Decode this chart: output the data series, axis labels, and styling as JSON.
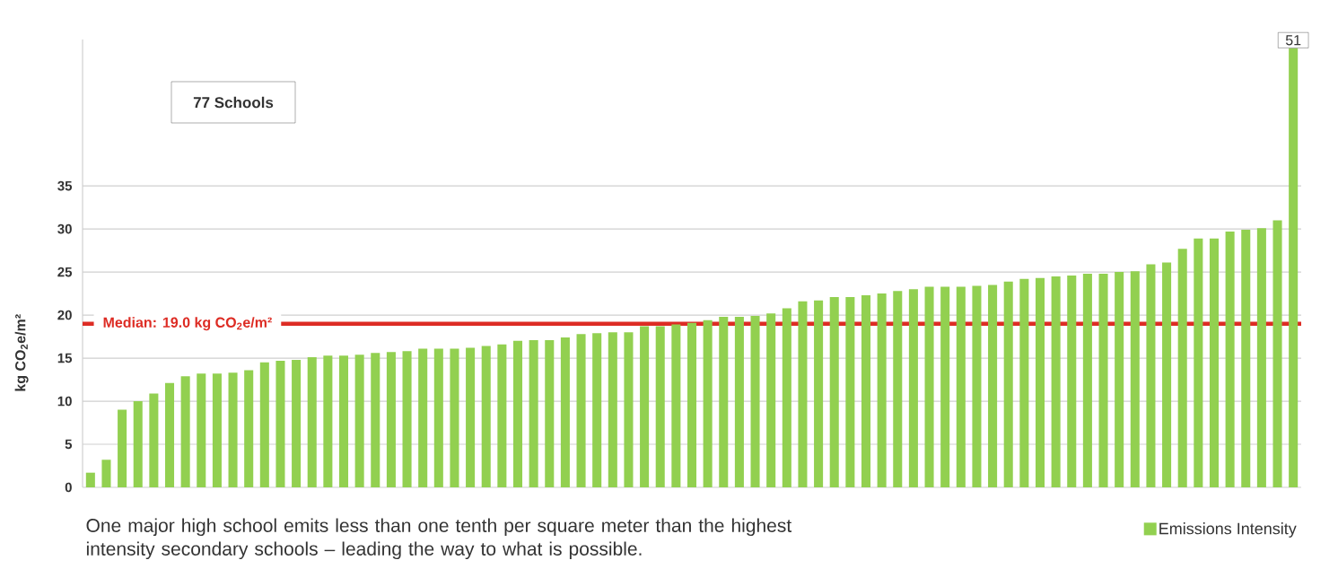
{
  "chart_data": {
    "type": "bar",
    "ylabel": "kg CO$_{2}$e/m²",
    "categories": [
      null,
      null,
      null,
      null,
      null,
      null,
      null,
      null,
      null,
      null,
      null,
      null,
      null,
      null,
      null,
      null,
      null,
      null,
      null,
      null,
      null,
      null,
      null,
      null,
      null,
      null,
      null,
      null,
      null,
      null,
      null,
      null,
      null,
      null,
      null,
      null,
      null,
      null,
      null,
      null,
      null,
      null,
      null,
      null,
      null,
      null,
      null,
      null,
      null,
      null,
      null,
      null,
      null,
      null,
      null,
      null,
      null,
      null,
      null,
      null,
      null,
      null,
      null,
      null,
      null,
      null,
      null,
      null,
      null,
      null,
      null,
      null,
      null,
      null,
      null,
      null,
      null
    ],
    "series": [
      {
        "name": "Emissions Intensity",
        "color": "#92d050",
        "values": [
          1.7,
          3.2,
          9.0,
          10.0,
          10.9,
          12.1,
          12.9,
          13.2,
          13.2,
          13.3,
          13.6,
          14.5,
          14.7,
          14.8,
          15.1,
          15.3,
          15.3,
          15.4,
          15.6,
          15.7,
          15.8,
          16.1,
          16.1,
          16.1,
          16.2,
          16.4,
          16.6,
          17.0,
          17.1,
          17.1,
          17.4,
          17.8,
          17.9,
          18.0,
          18.0,
          18.7,
          18.7,
          18.9,
          19.1,
          19.4,
          19.8,
          19.8,
          19.9,
          20.2,
          20.8,
          21.6,
          21.7,
          22.1,
          22.1,
          22.3,
          22.5,
          22.8,
          23.0,
          23.3,
          23.3,
          23.3,
          23.4,
          23.5,
          23.9,
          24.2,
          24.3,
          24.5,
          24.6,
          24.8,
          24.8,
          25.0,
          25.1,
          25.9,
          26.1,
          27.7,
          28.9,
          28.9,
          29.7,
          29.9,
          30.1,
          31.0,
          51
        ],
        "value_labels": [
          null,
          null,
          null,
          null,
          null,
          null,
          null,
          null,
          null,
          null,
          null,
          null,
          null,
          null,
          null,
          null,
          null,
          null,
          null,
          null,
          null,
          null,
          null,
          null,
          null,
          null,
          null,
          null,
          null,
          null,
          null,
          null,
          null,
          null,
          null,
          null,
          null,
          null,
          null,
          null,
          null,
          null,
          null,
          null,
          null,
          null,
          null,
          null,
          null,
          null,
          null,
          null,
          null,
          null,
          null,
          null,
          null,
          null,
          null,
          null,
          null,
          null,
          null,
          null,
          null,
          null,
          null,
          null,
          null,
          null,
          null,
          null,
          null,
          null,
          null,
          null,
          "51"
        ]
      }
    ],
    "ylim": [
      0,
      52
    ],
    "yticks": [
      0,
      5,
      10,
      15,
      20,
      25,
      30,
      35
    ],
    "grid": "y",
    "tick_labels": "y",
    "legend": "bottom right",
    "ref_lines": [
      {
        "axis": "y",
        "value": 19.0,
        "label": "Median: 19.0 kg CO$_{2}$e/m²",
        "color": "#dd2c24"
      }
    ],
    "annotations": [
      "77 Schools",
      "One major high school emits less than one tenth per square meter than the highest intensity secondary schools – leading the way to what is possible."
    ]
  }
}
